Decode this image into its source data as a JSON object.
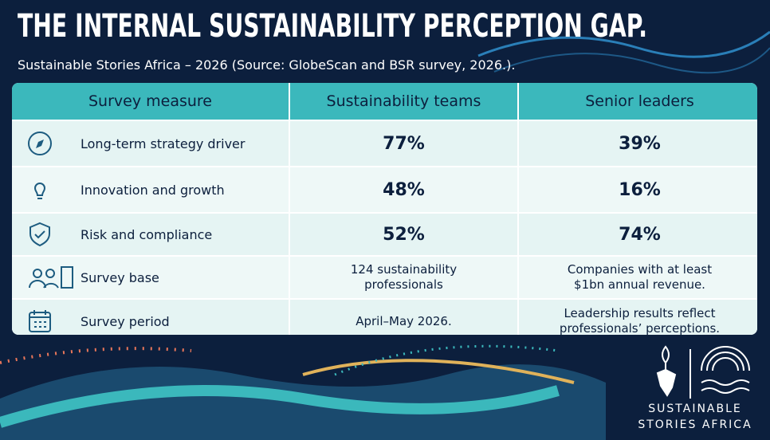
{
  "header": {
    "title": "THE INTERNAL SUSTAINABILITY PERCEPTION GAP.",
    "subtitle": "Sustainable Stories Africa – 2026 (Source: GlobeScan and BSR survey, 2026.)."
  },
  "table": {
    "columns": [
      "Survey measure",
      "Sustainability teams",
      "Senior leaders"
    ],
    "rows": [
      [
        "Long-term strategy driver",
        "77%",
        "39%"
      ],
      [
        "Innovation and growth",
        "48%",
        "16%"
      ],
      [
        "Risk and compliance",
        "52%",
        "74%"
      ],
      [
        "Survey base",
        "124 sustainability professionals",
        "Companies with at least $1bn annual revenue."
      ],
      [
        "Survey period",
        "April–May 2026.",
        "Leadership results reflect professionals’ perceptions."
      ]
    ]
  },
  "logo": {
    "line1": "SUSTAINABLE",
    "line2": "STORIES AFRICA"
  }
}
